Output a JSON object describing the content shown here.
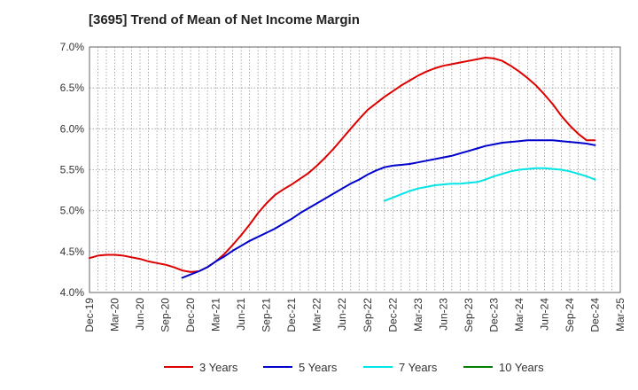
{
  "chart_data": {
    "type": "line",
    "title": "[3695]  Trend of Mean of Net Income Margin",
    "xlabel": "",
    "ylabel": "",
    "ylim": [
      4.0,
      7.0
    ],
    "y_ticks": [
      4.0,
      4.5,
      5.0,
      5.5,
      6.0,
      6.5,
      7.0
    ],
    "y_tick_labels": [
      "4.0%",
      "4.5%",
      "5.0%",
      "5.5%",
      "6.0%",
      "6.5%",
      "7.0%"
    ],
    "x_tick_labels": [
      "Dec-19",
      "Mar-20",
      "Jun-20",
      "Sep-20",
      "Dec-20",
      "Mar-21",
      "Jun-21",
      "Sep-21",
      "Dec-21",
      "Mar-22",
      "Jun-22",
      "Sep-22",
      "Dec-22",
      "Mar-23",
      "Jun-23",
      "Sep-23",
      "Dec-23",
      "Mar-24",
      "Jun-24",
      "Sep-24",
      "Dec-24",
      "Mar-25"
    ],
    "grid": true,
    "legend_position": "bottom",
    "series": [
      {
        "name": "3 Years",
        "color": "#dd0000",
        "x": [
          "2019-12",
          "2020-01",
          "2020-02",
          "2020-03",
          "2020-04",
          "2020-05",
          "2020-06",
          "2020-07",
          "2020-08",
          "2020-09",
          "2020-10",
          "2020-11",
          "2020-12",
          "2021-01",
          "2021-02",
          "2021-03",
          "2021-04",
          "2021-05",
          "2021-06",
          "2021-07",
          "2021-08",
          "2021-09",
          "2021-10",
          "2021-11",
          "2021-12",
          "2022-01",
          "2022-02",
          "2022-03",
          "2022-04",
          "2022-05",
          "2022-06",
          "2022-07",
          "2022-08",
          "2022-09",
          "2022-10",
          "2022-11",
          "2022-12",
          "2023-01",
          "2023-02",
          "2023-03",
          "2023-04",
          "2023-05",
          "2023-06",
          "2023-07",
          "2023-08",
          "2023-09",
          "2023-10",
          "2023-11",
          "2023-12",
          "2024-01",
          "2024-02",
          "2024-03",
          "2024-04",
          "2024-05",
          "2024-06",
          "2024-07",
          "2024-08",
          "2024-09",
          "2024-10",
          "2024-11",
          "2024-12"
        ],
        "values": [
          4.42,
          4.45,
          4.46,
          4.46,
          4.45,
          4.43,
          4.41,
          4.38,
          4.36,
          4.34,
          4.31,
          4.27,
          4.25,
          4.26,
          4.31,
          4.38,
          4.47,
          4.58,
          4.7,
          4.83,
          4.97,
          5.09,
          5.19,
          5.26,
          5.32,
          5.39,
          5.46,
          5.55,
          5.65,
          5.76,
          5.88,
          6.0,
          6.12,
          6.23,
          6.31,
          6.39,
          6.46,
          6.53,
          6.59,
          6.65,
          6.7,
          6.74,
          6.77,
          6.79,
          6.81,
          6.83,
          6.85,
          6.87,
          6.86,
          6.83,
          6.77,
          6.7,
          6.62,
          6.53,
          6.42,
          6.3,
          6.16,
          6.04,
          5.94,
          5.86,
          5.86
        ]
      },
      {
        "name": "5 Years",
        "color": "#0000cc",
        "x": [
          "2020-11",
          "2020-12",
          "2021-01",
          "2021-02",
          "2021-03",
          "2021-04",
          "2021-05",
          "2021-06",
          "2021-07",
          "2021-08",
          "2021-09",
          "2021-10",
          "2021-11",
          "2021-12",
          "2022-01",
          "2022-02",
          "2022-03",
          "2022-04",
          "2022-05",
          "2022-06",
          "2022-07",
          "2022-08",
          "2022-09",
          "2022-10",
          "2022-11",
          "2022-12",
          "2023-01",
          "2023-02",
          "2023-03",
          "2023-04",
          "2023-05",
          "2023-06",
          "2023-07",
          "2023-08",
          "2023-09",
          "2023-10",
          "2023-11",
          "2023-12",
          "2024-01",
          "2024-02",
          "2024-03",
          "2024-04",
          "2024-05",
          "2024-06",
          "2024-07",
          "2024-08",
          "2024-09",
          "2024-10",
          "2024-11",
          "2024-12"
        ],
        "values": [
          4.18,
          4.22,
          4.26,
          4.31,
          4.38,
          4.44,
          4.51,
          4.57,
          4.63,
          4.68,
          4.73,
          4.78,
          4.84,
          4.9,
          4.97,
          5.03,
          5.09,
          5.15,
          5.21,
          5.27,
          5.33,
          5.38,
          5.44,
          5.49,
          5.53,
          5.55,
          5.56,
          5.57,
          5.59,
          5.61,
          5.63,
          5.65,
          5.67,
          5.7,
          5.73,
          5.76,
          5.79,
          5.81,
          5.83,
          5.84,
          5.85,
          5.86,
          5.86,
          5.86,
          5.86,
          5.85,
          5.84,
          5.83,
          5.82,
          5.8
        ]
      },
      {
        "name": "7 Years",
        "color": "#00e5e5",
        "x": [
          "2022-11",
          "2022-12",
          "2023-01",
          "2023-02",
          "2023-03",
          "2023-04",
          "2023-05",
          "2023-06",
          "2023-07",
          "2023-08",
          "2023-09",
          "2023-10",
          "2023-11",
          "2023-12",
          "2024-01",
          "2024-02",
          "2024-03",
          "2024-04",
          "2024-05",
          "2024-06",
          "2024-07",
          "2024-08",
          "2024-09",
          "2024-10",
          "2024-11",
          "2024-12"
        ],
        "values": [
          5.12,
          5.16,
          5.2,
          5.24,
          5.27,
          5.29,
          5.31,
          5.32,
          5.33,
          5.33,
          5.34,
          5.35,
          5.38,
          5.42,
          5.45,
          5.48,
          5.5,
          5.51,
          5.52,
          5.52,
          5.51,
          5.5,
          5.48,
          5.45,
          5.42,
          5.38
        ]
      },
      {
        "name": "10 Years",
        "color": "#008000",
        "x": [],
        "values": []
      }
    ]
  }
}
